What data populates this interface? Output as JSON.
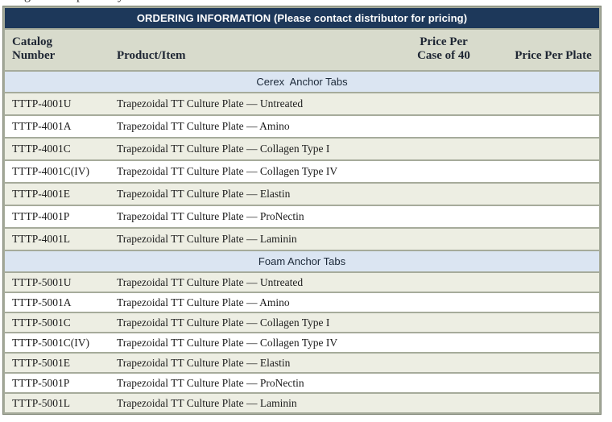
{
  "page": {
    "top_cropped_fragments": [
      "g",
      "p",
      "y"
    ]
  },
  "table": {
    "title": "ORDERING INFORMATION (Please contact distributor for pricing)",
    "columns": [
      {
        "key": "catalog",
        "label_lines": [
          "Catalog",
          "Number"
        ]
      },
      {
        "key": "product",
        "label_lines": [
          "Product/Item"
        ]
      },
      {
        "key": "price_case",
        "label_lines": [
          "Price Per",
          "Case of 40"
        ]
      },
      {
        "key": "price_plate",
        "label_lines": [
          "Price Per Plate"
        ]
      }
    ],
    "sections": [
      {
        "name": "Cerex  Anchor Tabs",
        "rows": [
          {
            "catalog": "TTTP-4001U",
            "product": "Trapezoidal TT Culture Plate — Untreated",
            "price_case": "",
            "price_plate": ""
          },
          {
            "catalog": "TTTP-4001A",
            "product": "Trapezoidal TT Culture Plate — Amino",
            "price_case": "",
            "price_plate": ""
          },
          {
            "catalog": "TTTP-4001C",
            "product": "Trapezoidal TT Culture Plate — Collagen Type I",
            "price_case": "",
            "price_plate": ""
          },
          {
            "catalog": "TTTP-4001C(IV)",
            "product": "Trapezoidal TT Culture Plate — Collagen Type IV",
            "price_case": "",
            "price_plate": ""
          },
          {
            "catalog": "TTTP-4001E",
            "product": "Trapezoidal TT Culture Plate — Elastin",
            "price_case": "",
            "price_plate": ""
          },
          {
            "catalog": "TTTP-4001P",
            "product": "Trapezoidal TT Culture Plate — ProNectin",
            "price_case": "",
            "price_plate": ""
          },
          {
            "catalog": "TTTP-4001L",
            "product": "Trapezoidal TT Culture Plate — Laminin",
            "price_case": "",
            "price_plate": ""
          }
        ]
      },
      {
        "name": "Foam Anchor Tabs",
        "rows": [
          {
            "catalog": "TTTP-5001U",
            "product": "Trapezoidal TT Culture Plate — Untreated",
            "price_case": "",
            "price_plate": ""
          },
          {
            "catalog": "TTTP-5001A",
            "product": "Trapezoidal TT Culture Plate — Amino",
            "price_case": "",
            "price_plate": ""
          },
          {
            "catalog": "TTTP-5001C",
            "product": "Trapezoidal TT Culture Plate — Collagen Type I",
            "price_case": "",
            "price_plate": ""
          },
          {
            "catalog": "TTTP-5001C(IV)",
            "product": "Trapezoidal TT Culture Plate — Collagen Type IV",
            "price_case": "",
            "price_plate": ""
          },
          {
            "catalog": "TTTP-5001E",
            "product": "Trapezoidal TT Culture Plate — Elastin",
            "price_case": "",
            "price_plate": ""
          },
          {
            "catalog": "TTTP-5001P",
            "product": "Trapezoidal TT Culture Plate — ProNectin",
            "price_case": "",
            "price_plate": ""
          },
          {
            "catalog": "TTTP-5001L",
            "product": "Trapezoidal TT Culture Plate — Laminin",
            "price_case": "",
            "price_plate": ""
          }
        ]
      }
    ],
    "colors": {
      "title_bar_bg": "#1d385a",
      "title_text": "#ffffff",
      "header_bg": "#d8dbcc",
      "header_text": "#1e2633",
      "section_bg": "#dbe5f2",
      "section_text": "#1b2838",
      "row_alt_bg": "#edeee3",
      "row_bg": "#ffffff",
      "body_text": "#1c1c1c",
      "border": "#a6ab9b",
      "outer_border": "#7f8575"
    }
  }
}
